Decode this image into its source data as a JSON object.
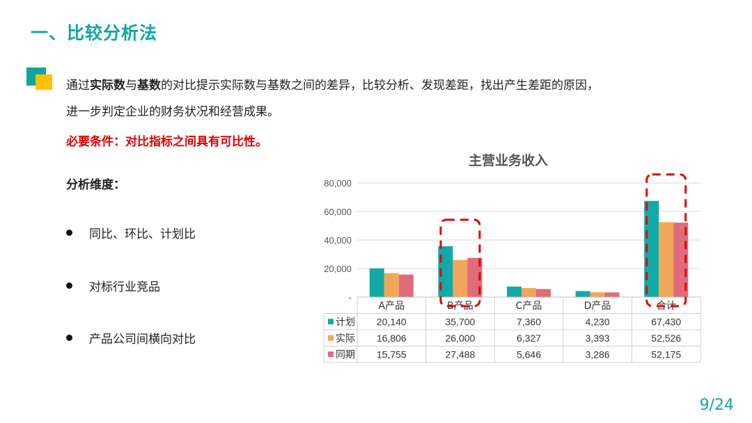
{
  "slide": {
    "title": "一、比较分析法",
    "intro": {
      "p1": "通过",
      "b1": "实际数",
      "p2": "与",
      "b2": "基数",
      "p3": "的对比提示实际数与基数之间的差异，比较分析、发现差距，找出产生差距的原因，",
      "line2": "进一步判定企业的财务状况和经营成果。"
    },
    "requirement": "必要条件：对比指标之间具有可比性。",
    "dimensions_label": "分析维度：",
    "bullets": [
      "同比、环比、计划比",
      "对标行业竞品",
      "产品公司间横向对比"
    ],
    "page": "9/24"
  },
  "colors": {
    "accent": "#11a5a0",
    "accent2": "#ffc000",
    "requirement": "#e00000",
    "series_plan": "#11aaa6",
    "series_actual": "#f2a65a",
    "series_prior": "#e06b7a",
    "highlight": "#e60000"
  },
  "chart_data": {
    "type": "bar",
    "title": "主营业务收入",
    "categories": [
      "A产品",
      "B产品",
      "C产品",
      "D产品",
      "合计"
    ],
    "series": [
      {
        "name": "计划",
        "values": [
          20140,
          35700,
          7360,
          4230,
          67430
        ]
      },
      {
        "name": "实际",
        "values": [
          16806,
          26000,
          6327,
          3393,
          52526
        ]
      },
      {
        "name": "同期",
        "values": [
          15755,
          27488,
          5646,
          3286,
          52175
        ]
      }
    ],
    "table_values": [
      [
        "20,140",
        "35,700",
        "7,360",
        "4,230",
        "67,430"
      ],
      [
        "16,806",
        "26,000",
        "6,327",
        "3,393",
        "52,526"
      ],
      [
        "15,755",
        "27,488",
        "5,646",
        "3,286",
        "52,175"
      ]
    ],
    "yticks": [
      "80,000",
      "60,000",
      "40,000",
      "20,000",
      "-"
    ],
    "ylim": [
      0,
      80000
    ],
    "grid": true,
    "data_table": true,
    "highlighted_categories": [
      "B产品",
      "合计"
    ]
  }
}
